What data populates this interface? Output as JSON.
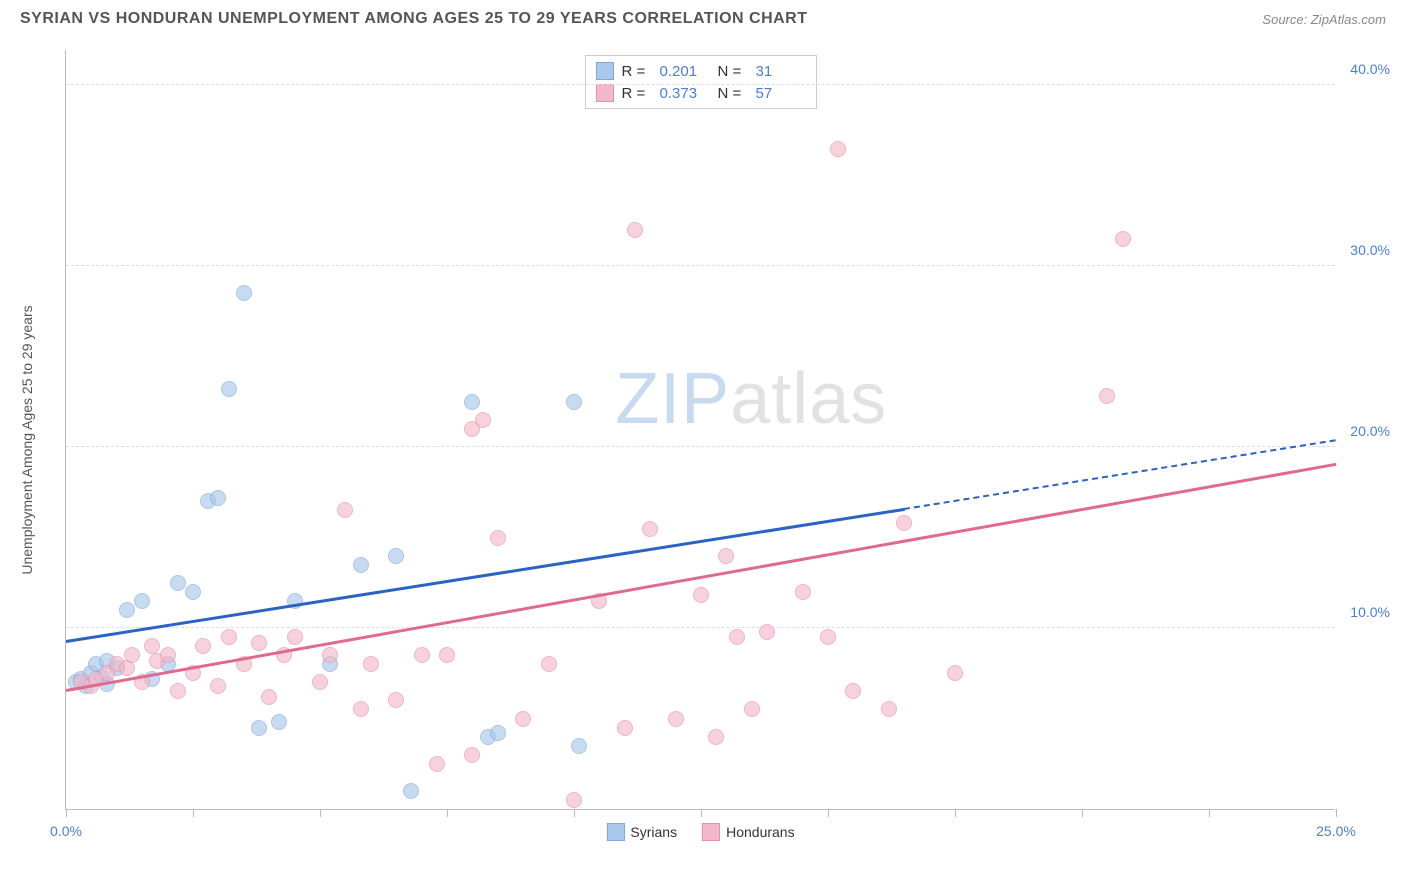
{
  "header": {
    "title": "SYRIAN VS HONDURAN UNEMPLOYMENT AMONG AGES 25 TO 29 YEARS CORRELATION CHART",
    "source_label": "Source:",
    "source_value": "ZipAtlas.com"
  },
  "watermark": {
    "part1": "ZIP",
    "part2": "atlas"
  },
  "chart": {
    "type": "scatter",
    "y_axis_title": "Unemployment Among Ages 25 to 29 years",
    "background_color": "#ffffff",
    "grid_color": "#dddddd",
    "axis_color": "#bbbbbb",
    "tick_label_color": "#4a7fd8",
    "xlim": [
      0,
      25
    ],
    "ylim": [
      0,
      42
    ],
    "x_ticks": [
      0,
      2.5,
      5,
      7.5,
      10,
      12.5,
      15,
      17.5,
      20,
      22.5,
      25
    ],
    "x_tick_labels": {
      "0": "0.0%",
      "25": "25.0%"
    },
    "y_ticks": [
      10,
      20,
      30,
      40
    ],
    "y_tick_labels": [
      "10.0%",
      "20.0%",
      "30.0%",
      "40.0%"
    ],
    "series": [
      {
        "name": "Syrians",
        "marker_color": "#a9c8ec",
        "marker_border": "#7fa8d8",
        "line_color": "#2a63c4",
        "marker_size": 16,
        "marker_opacity": 0.65,
        "R": "0.201",
        "N": "31",
        "trend": {
          "x1": 0,
          "y1": 9.2,
          "x2": 16.5,
          "y2": 16.5,
          "dash_to_x": 25,
          "dash_to_y": 20.3
        },
        "points": [
          [
            0.2,
            7.0
          ],
          [
            0.3,
            7.2
          ],
          [
            0.4,
            6.8
          ],
          [
            0.5,
            7.5
          ],
          [
            0.6,
            8.0
          ],
          [
            0.7,
            7.3
          ],
          [
            0.8,
            8.2
          ],
          [
            0.8,
            6.9
          ],
          [
            1.0,
            7.8
          ],
          [
            1.2,
            11.0
          ],
          [
            1.5,
            11.5
          ],
          [
            1.7,
            7.2
          ],
          [
            2.0,
            8.0
          ],
          [
            2.2,
            12.5
          ],
          [
            2.5,
            12.0
          ],
          [
            2.8,
            17.0
          ],
          [
            3.0,
            17.2
          ],
          [
            3.2,
            23.2
          ],
          [
            3.5,
            28.5
          ],
          [
            3.8,
            4.5
          ],
          [
            4.2,
            4.8
          ],
          [
            4.5,
            11.5
          ],
          [
            5.2,
            8.0
          ],
          [
            5.8,
            13.5
          ],
          [
            6.5,
            14.0
          ],
          [
            6.8,
            1.0
          ],
          [
            8.0,
            22.5
          ],
          [
            8.3,
            4.0
          ],
          [
            8.5,
            4.2
          ],
          [
            10.0,
            22.5
          ],
          [
            10.1,
            3.5
          ]
        ]
      },
      {
        "name": "Hondurans",
        "marker_color": "#f3b9ca",
        "marker_border": "#e88faa",
        "line_color": "#e06a8e",
        "marker_size": 16,
        "marker_opacity": 0.65,
        "R": "0.373",
        "N": "57",
        "trend": {
          "x1": 0,
          "y1": 6.5,
          "x2": 25,
          "y2": 19.0
        },
        "points": [
          [
            0.3,
            7.0
          ],
          [
            0.5,
            6.8
          ],
          [
            0.6,
            7.2
          ],
          [
            0.8,
            7.5
          ],
          [
            1.0,
            8.0
          ],
          [
            1.2,
            7.8
          ],
          [
            1.3,
            8.5
          ],
          [
            1.5,
            7.0
          ],
          [
            1.7,
            9.0
          ],
          [
            1.8,
            8.2
          ],
          [
            2.0,
            8.5
          ],
          [
            2.2,
            6.5
          ],
          [
            2.5,
            7.5
          ],
          [
            2.7,
            9.0
          ],
          [
            3.0,
            6.8
          ],
          [
            3.2,
            9.5
          ],
          [
            3.5,
            8.0
          ],
          [
            3.8,
            9.2
          ],
          [
            4.0,
            6.2
          ],
          [
            4.3,
            8.5
          ],
          [
            4.5,
            9.5
          ],
          [
            5.0,
            7.0
          ],
          [
            5.2,
            8.5
          ],
          [
            5.5,
            16.5
          ],
          [
            5.8,
            5.5
          ],
          [
            6.0,
            8.0
          ],
          [
            6.5,
            6.0
          ],
          [
            7.0,
            8.5
          ],
          [
            7.3,
            2.5
          ],
          [
            7.5,
            8.5
          ],
          [
            8.0,
            3.0
          ],
          [
            8.0,
            21.0
          ],
          [
            8.2,
            21.5
          ],
          [
            8.5,
            15.0
          ],
          [
            9.0,
            5.0
          ],
          [
            9.5,
            8.0
          ],
          [
            10.0,
            0.5
          ],
          [
            10.5,
            11.5
          ],
          [
            11.0,
            4.5
          ],
          [
            11.2,
            32.0
          ],
          [
            11.5,
            15.5
          ],
          [
            12.0,
            5.0
          ],
          [
            12.5,
            11.8
          ],
          [
            12.8,
            4.0
          ],
          [
            13.0,
            14.0
          ],
          [
            13.2,
            9.5
          ],
          [
            13.5,
            5.5
          ],
          [
            13.8,
            9.8
          ],
          [
            14.5,
            12.0
          ],
          [
            15.0,
            9.5
          ],
          [
            15.2,
            36.5
          ],
          [
            15.5,
            6.5
          ],
          [
            16.2,
            5.5
          ],
          [
            16.5,
            15.8
          ],
          [
            17.5,
            7.5
          ],
          [
            20.5,
            22.8
          ],
          [
            20.8,
            31.5
          ]
        ]
      }
    ],
    "legend_bottom": [
      {
        "label": "Syrians",
        "swatch": "#a9c8ec",
        "border": "#7fa8d8"
      },
      {
        "label": "Hondurans",
        "swatch": "#f3b9ca",
        "border": "#e88faa"
      }
    ]
  }
}
